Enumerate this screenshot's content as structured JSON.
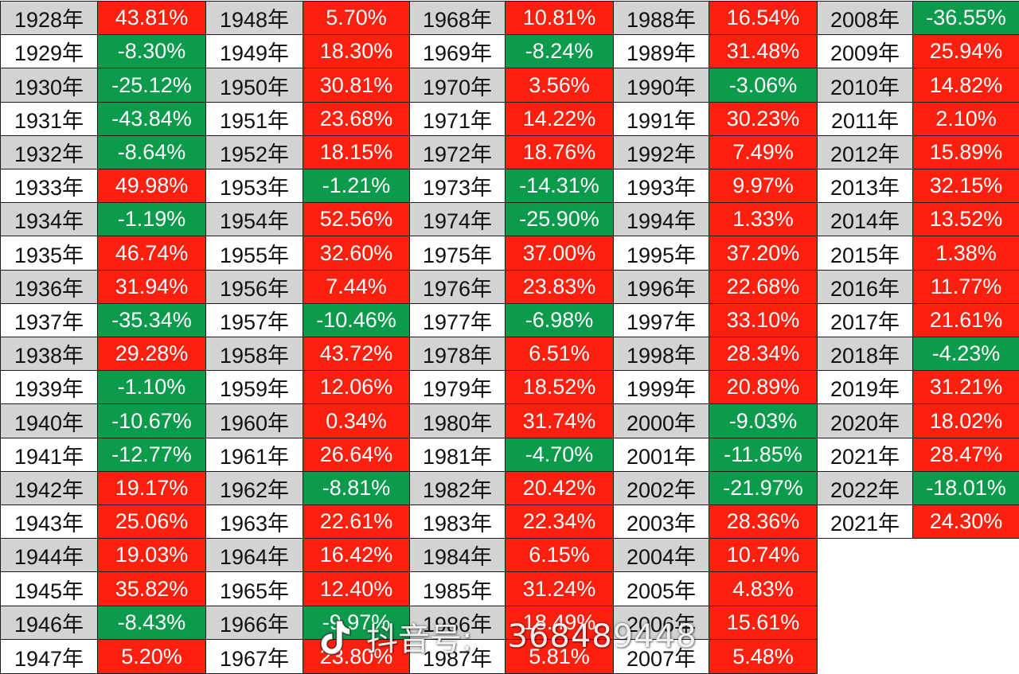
{
  "colors": {
    "positive": "#ff1f0f",
    "negative": "#0c9a4c",
    "year_shaded": "#d3d3d3",
    "year_plain": "#ffffff"
  },
  "columns": [
    {
      "rows": [
        {
          "year": "1928年",
          "value": "43.81%"
        },
        {
          "year": "1929年",
          "value": "-8.30%"
        },
        {
          "year": "1930年",
          "value": "-25.12%"
        },
        {
          "year": "1931年",
          "value": "-43.84%"
        },
        {
          "year": "1932年",
          "value": "-8.64%"
        },
        {
          "year": "1933年",
          "value": "49.98%"
        },
        {
          "year": "1934年",
          "value": "-1.19%"
        },
        {
          "year": "1935年",
          "value": "46.74%"
        },
        {
          "year": "1936年",
          "value": "31.94%"
        },
        {
          "year": "1937年",
          "value": "-35.34%"
        },
        {
          "year": "1938年",
          "value": "29.28%"
        },
        {
          "year": "1939年",
          "value": "-1.10%"
        },
        {
          "year": "1940年",
          "value": "-10.67%"
        },
        {
          "year": "1941年",
          "value": "-12.77%"
        },
        {
          "year": "1942年",
          "value": "19.17%"
        },
        {
          "year": "1943年",
          "value": "25.06%"
        },
        {
          "year": "1944年",
          "value": "19.03%"
        },
        {
          "year": "1945年",
          "value": "35.82%"
        },
        {
          "year": "1946年",
          "value": "-8.43%"
        },
        {
          "year": "1947年",
          "value": "5.20%"
        }
      ]
    },
    {
      "rows": [
        {
          "year": "1948年",
          "value": "5.70%"
        },
        {
          "year": "1949年",
          "value": "18.30%"
        },
        {
          "year": "1950年",
          "value": "30.81%"
        },
        {
          "year": "1951年",
          "value": "23.68%"
        },
        {
          "year": "1952年",
          "value": "18.15%"
        },
        {
          "year": "1953年",
          "value": "-1.21%"
        },
        {
          "year": "1954年",
          "value": "52.56%"
        },
        {
          "year": "1955年",
          "value": "32.60%"
        },
        {
          "year": "1956年",
          "value": "7.44%"
        },
        {
          "year": "1957年",
          "value": "-10.46%"
        },
        {
          "year": "1958年",
          "value": "43.72%"
        },
        {
          "year": "1959年",
          "value": "12.06%"
        },
        {
          "year": "1960年",
          "value": "0.34%"
        },
        {
          "year": "1961年",
          "value": "26.64%"
        },
        {
          "year": "1962年",
          "value": "-8.81%"
        },
        {
          "year": "1963年",
          "value": "22.61%"
        },
        {
          "year": "1964年",
          "value": "16.42%"
        },
        {
          "year": "1965年",
          "value": "12.40%"
        },
        {
          "year": "1966年",
          "value": "-9.97%"
        },
        {
          "year": "1967年",
          "value": "23.80%"
        }
      ]
    },
    {
      "rows": [
        {
          "year": "1968年",
          "value": "10.81%"
        },
        {
          "year": "1969年",
          "value": "-8.24%"
        },
        {
          "year": "1970年",
          "value": "3.56%"
        },
        {
          "year": "1971年",
          "value": "14.22%"
        },
        {
          "year": "1972年",
          "value": "18.76%"
        },
        {
          "year": "1973年",
          "value": "-14.31%"
        },
        {
          "year": "1974年",
          "value": "-25.90%"
        },
        {
          "year": "1975年",
          "value": "37.00%"
        },
        {
          "year": "1976年",
          "value": "23.83%"
        },
        {
          "year": "1977年",
          "value": "-6.98%"
        },
        {
          "year": "1978年",
          "value": "6.51%"
        },
        {
          "year": "1979年",
          "value": "18.52%"
        },
        {
          "year": "1980年",
          "value": "31.74%"
        },
        {
          "year": "1981年",
          "value": "-4.70%"
        },
        {
          "year": "1982年",
          "value": "20.42%"
        },
        {
          "year": "1983年",
          "value": "22.34%"
        },
        {
          "year": "1984年",
          "value": "6.15%"
        },
        {
          "year": "1985年",
          "value": "31.24%"
        },
        {
          "year": "1986年",
          "value": "18.49%"
        },
        {
          "year": "1987年",
          "value": "5.81%"
        }
      ]
    },
    {
      "rows": [
        {
          "year": "1988年",
          "value": "16.54%"
        },
        {
          "year": "1989年",
          "value": "31.48%"
        },
        {
          "year": "1990年",
          "value": "-3.06%"
        },
        {
          "year": "1991年",
          "value": "30.23%"
        },
        {
          "year": "1992年",
          "value": "7.49%"
        },
        {
          "year": "1993年",
          "value": "9.97%"
        },
        {
          "year": "1994年",
          "value": "1.33%"
        },
        {
          "year": "1995年",
          "value": "37.20%"
        },
        {
          "year": "1996年",
          "value": "22.68%"
        },
        {
          "year": "1997年",
          "value": "33.10%"
        },
        {
          "year": "1998年",
          "value": "28.34%"
        },
        {
          "year": "1999年",
          "value": "20.89%"
        },
        {
          "year": "2000年",
          "value": "-9.03%"
        },
        {
          "year": "2001年",
          "value": "-11.85%"
        },
        {
          "year": "2002年",
          "value": "-21.97%"
        },
        {
          "year": "2003年",
          "value": "28.36%"
        },
        {
          "year": "2004年",
          "value": "10.74%"
        },
        {
          "year": "2005年",
          "value": "4.83%"
        },
        {
          "year": "2006年",
          "value": "15.61%"
        },
        {
          "year": "2007年",
          "value": "5.48%"
        }
      ]
    },
    {
      "rows": [
        {
          "year": "2008年",
          "value": "-36.55%"
        },
        {
          "year": "2009年",
          "value": "25.94%"
        },
        {
          "year": "2010年",
          "value": "14.82%"
        },
        {
          "year": "2011年",
          "value": "2.10%"
        },
        {
          "year": "2012年",
          "value": "15.89%"
        },
        {
          "year": "2013年",
          "value": "32.15%"
        },
        {
          "year": "2014年",
          "value": "13.52%"
        },
        {
          "year": "2015年",
          "value": "1.38%"
        },
        {
          "year": "2016年",
          "value": "11.77%"
        },
        {
          "year": "2017年",
          "value": "21.61%"
        },
        {
          "year": "2018年",
          "value": "-4.23%"
        },
        {
          "year": "2019年",
          "value": "31.21%"
        },
        {
          "year": "2020年",
          "value": "18.02%"
        },
        {
          "year": "2021年",
          "value": "28.47%"
        },
        {
          "year": "2022年",
          "value": "-18.01%"
        },
        {
          "year": "2021年",
          "value": "24.30%"
        }
      ]
    }
  ],
  "watermark": {
    "icon": "douyin-logo-icon",
    "label": "抖音号:",
    "id": "368489448"
  }
}
